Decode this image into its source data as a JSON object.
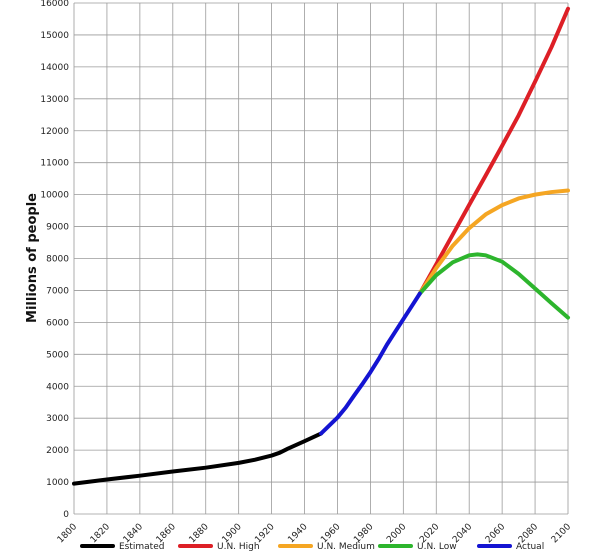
{
  "chart_data": {
    "type": "line",
    "title": "",
    "xlabel": "",
    "ylabel": "Millions of people",
    "xlim": [
      1800,
      2100
    ],
    "ylim": [
      0,
      16000
    ],
    "grid": true,
    "legend_position": "bottom",
    "x_ticks": [
      "1800",
      "1820",
      "1840",
      "1860",
      "1880",
      "1900",
      "1920",
      "1940",
      "1960",
      "1980",
      "2000",
      "2020",
      "2040",
      "2060",
      "2080",
      "2100"
    ],
    "y_ticks": [
      "0",
      "1000",
      "2000",
      "3000",
      "4000",
      "5000",
      "6000",
      "7000",
      "8000",
      "9000",
      "10000",
      "11000",
      "12000",
      "13000",
      "14000",
      "15000",
      "16000"
    ],
    "series": [
      {
        "name": "Estimated",
        "color": "#000000",
        "points": [
          [
            1800,
            950
          ],
          [
            1820,
            1080
          ],
          [
            1840,
            1200
          ],
          [
            1860,
            1330
          ],
          [
            1880,
            1450
          ],
          [
            1900,
            1600
          ],
          [
            1910,
            1700
          ],
          [
            1920,
            1830
          ],
          [
            1925,
            1920
          ],
          [
            1930,
            2050
          ],
          [
            1940,
            2280
          ],
          [
            1950,
            2520
          ]
        ]
      },
      {
        "name": "U.N. High",
        "color": "#dd1f26",
        "points": [
          [
            2010,
            6900
          ],
          [
            2020,
            7820
          ],
          [
            2030,
            8750
          ],
          [
            2040,
            9680
          ],
          [
            2050,
            10600
          ],
          [
            2060,
            11530
          ],
          [
            2070,
            12480
          ],
          [
            2080,
            13540
          ],
          [
            2090,
            14620
          ],
          [
            2100,
            15820
          ]
        ]
      },
      {
        "name": "U.N. Medium",
        "color": "#f5a623",
        "points": [
          [
            2010,
            6900
          ],
          [
            2020,
            7700
          ],
          [
            2030,
            8400
          ],
          [
            2040,
            8950
          ],
          [
            2050,
            9380
          ],
          [
            2060,
            9670
          ],
          [
            2070,
            9880
          ],
          [
            2080,
            10000
          ],
          [
            2090,
            10080
          ],
          [
            2100,
            10130
          ]
        ]
      },
      {
        "name": "U.N. Low",
        "color": "#2db52d",
        "points": [
          [
            2010,
            6900
          ],
          [
            2020,
            7480
          ],
          [
            2030,
            7880
          ],
          [
            2040,
            8100
          ],
          [
            2045,
            8130
          ],
          [
            2050,
            8100
          ],
          [
            2060,
            7900
          ],
          [
            2070,
            7520
          ],
          [
            2080,
            7060
          ],
          [
            2090,
            6600
          ],
          [
            2100,
            6150
          ]
        ]
      },
      {
        "name": "Actual",
        "color": "#1414d2",
        "points": [
          [
            1950,
            2520
          ],
          [
            1955,
            2770
          ],
          [
            1960,
            3020
          ],
          [
            1965,
            3330
          ],
          [
            1970,
            3700
          ],
          [
            1975,
            4060
          ],
          [
            1980,
            4440
          ],
          [
            1985,
            4850
          ],
          [
            1990,
            5300
          ],
          [
            1995,
            5700
          ],
          [
            2000,
            6100
          ],
          [
            2005,
            6500
          ],
          [
            2010,
            6900
          ]
        ]
      }
    ]
  }
}
